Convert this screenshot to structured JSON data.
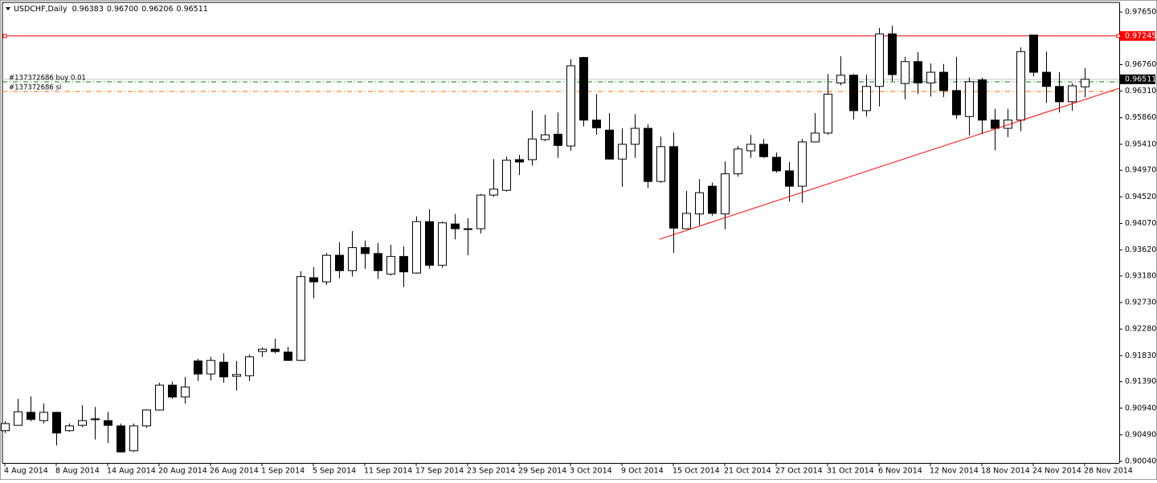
{
  "chart_data": {
    "type": "candlestick",
    "symbol": "USDCHF,Daily",
    "header_ohlc": [
      "0.96383",
      "0.96700",
      "0.96206",
      "0.96511"
    ],
    "categories": [
      "4 Aug 2014",
      null,
      null,
      null,
      "8 Aug 2014",
      null,
      null,
      null,
      "14 Aug 2014",
      null,
      null,
      null,
      "20 Aug 2014",
      null,
      null,
      null,
      "26 Aug 2014",
      null,
      null,
      null,
      "1 Sep 2014",
      null,
      null,
      null,
      "5 Sep 2014",
      null,
      null,
      null,
      "11 Sep 2014",
      null,
      null,
      null,
      "17 Sep 2014",
      null,
      null,
      null,
      "23 Sep 2014",
      null,
      null,
      null,
      "29 Sep 2014",
      null,
      null,
      null,
      "3 Oct 2014",
      null,
      null,
      null,
      "9 Oct 2014",
      null,
      null,
      null,
      "15 Oct 2014",
      null,
      null,
      null,
      "21 Oct 2014",
      null,
      null,
      null,
      "27 Oct 2014",
      null,
      null,
      null,
      "31 Oct 2014",
      null,
      null,
      null,
      "6 Nov 2014",
      null,
      null,
      null,
      "12 Nov 2014",
      null,
      null,
      null,
      "18 Nov 2014",
      null,
      null,
      null,
      "24 Nov 2014",
      null,
      null,
      null,
      "28 Nov 2014"
    ],
    "open": [
      0.9056,
      0.9065,
      0.9087,
      0.9073,
      0.9087,
      0.9056,
      0.9065,
      0.9075,
      0.9073,
      0.9064,
      0.9022,
      0.9064,
      0.9091,
      0.9133,
      0.9113,
      0.9174,
      0.9152,
      0.9172,
      0.9148,
      0.9149,
      0.919,
      0.9194,
      0.9189,
      0.9175,
      0.9315,
      0.9308,
      0.9353,
      0.9327,
      0.9366,
      0.9356,
      0.9321,
      0.9351,
      0.9323,
      0.941,
      0.9336,
      0.9406,
      0.9398,
      0.9398,
      0.9455,
      0.9463,
      0.9515,
      0.9515,
      0.9549,
      0.9558,
      0.9538,
      0.9688,
      0.9582,
      0.9565,
      0.9516,
      0.9541,
      0.9568,
      0.9478,
      0.9537,
      0.9398,
      0.9423,
      0.947,
      0.9423,
      0.9491,
      0.953,
      0.9541,
      0.9519,
      0.9496,
      0.947,
      0.9545,
      0.956,
      0.9645,
      0.9658,
      0.9598,
      0.9639,
      0.9728,
      0.9644,
      0.9681,
      0.9645,
      0.9663,
      0.9632,
      0.9588,
      0.965,
      0.9582,
      0.9568,
      0.9582,
      0.9726,
      0.9663,
      0.9639,
      0.9613,
      0.96383
    ],
    "high": [
      0.9072,
      0.911,
      0.9114,
      0.9102,
      0.9088,
      0.9068,
      0.9099,
      0.9096,
      0.9088,
      0.9068,
      0.9068,
      0.9092,
      0.9137,
      0.9139,
      0.9147,
      0.9178,
      0.9181,
      0.9187,
      0.9174,
      0.9185,
      0.9197,
      0.9212,
      0.9198,
      0.9326,
      0.9333,
      0.9357,
      0.9375,
      0.9394,
      0.9378,
      0.9374,
      0.9371,
      0.9368,
      0.9419,
      0.9431,
      0.941,
      0.9423,
      0.9416,
      0.9457,
      0.9516,
      0.952,
      0.9523,
      0.9598,
      0.9591,
      0.9595,
      0.9685,
      0.9689,
      0.9626,
      0.9594,
      0.9568,
      0.9592,
      0.9575,
      0.9554,
      0.9561,
      0.9462,
      0.9482,
      0.9476,
      0.9512,
      0.9538,
      0.9557,
      0.955,
      0.9527,
      0.9511,
      0.955,
      0.9594,
      0.966,
      0.969,
      0.966,
      0.9659,
      0.9738,
      0.9742,
      0.9689,
      0.9697,
      0.9678,
      0.9677,
      0.9689,
      0.9654,
      0.9654,
      0.9601,
      0.9601,
      0.9705,
      0.9726,
      0.9698,
      0.9663,
      0.9644,
      0.967
    ],
    "low": [
      0.9052,
      0.9065,
      0.9072,
      0.9068,
      0.9031,
      0.9054,
      0.9062,
      0.9041,
      0.9035,
      0.9019,
      0.902,
      0.9061,
      0.909,
      0.911,
      0.9102,
      0.914,
      0.9141,
      0.9137,
      0.9124,
      0.914,
      0.9181,
      0.9187,
      0.9174,
      0.9174,
      0.928,
      0.9303,
      0.9314,
      0.9317,
      0.933,
      0.9313,
      0.9319,
      0.9299,
      0.9322,
      0.933,
      0.9332,
      0.938,
      0.9353,
      0.939,
      0.9452,
      0.9461,
      0.9489,
      0.9505,
      0.9546,
      0.9518,
      0.953,
      0.9571,
      0.9557,
      0.9515,
      0.9469,
      0.9518,
      0.9467,
      0.9476,
      0.9357,
      0.9397,
      0.9404,
      0.942,
      0.9397,
      0.9486,
      0.9518,
      0.9518,
      0.9493,
      0.9444,
      0.9442,
      0.9544,
      0.9557,
      0.9641,
      0.9583,
      0.9588,
      0.9605,
      0.9648,
      0.9617,
      0.9626,
      0.9622,
      0.9621,
      0.9584,
      0.9556,
      0.9558,
      0.9531,
      0.9553,
      0.9563,
      0.9656,
      0.9611,
      0.9595,
      0.9598,
      0.96206
    ],
    "close": [
      0.9068,
      0.9088,
      0.9075,
      0.9087,
      0.9052,
      0.9064,
      0.9073,
      0.9076,
      0.9065,
      0.902,
      0.9064,
      0.9091,
      0.9133,
      0.9113,
      0.913,
      0.9152,
      0.9175,
      0.9147,
      0.9151,
      0.9181,
      0.9194,
      0.919,
      0.9175,
      0.9317,
      0.9308,
      0.9353,
      0.9327,
      0.9366,
      0.9356,
      0.9327,
      0.9351,
      0.9325,
      0.941,
      0.9336,
      0.9408,
      0.9398,
      0.9397,
      0.9455,
      0.9465,
      0.9514,
      0.9511,
      0.955,
      0.9557,
      0.9539,
      0.9674,
      0.9582,
      0.9569,
      0.9516,
      0.9541,
      0.9568,
      0.9478,
      0.9537,
      0.9399,
      0.9424,
      0.9459,
      0.9424,
      0.9491,
      0.9533,
      0.9541,
      0.952,
      0.9496,
      0.947,
      0.9545,
      0.956,
      0.9626,
      0.9658,
      0.9598,
      0.9639,
      0.9728,
      0.9659,
      0.9681,
      0.9645,
      0.9663,
      0.9632,
      0.9591,
      0.9647,
      0.9582,
      0.9568,
      0.9582,
      0.9698,
      0.9663,
      0.9639,
      0.9613,
      0.964,
      0.96511
    ],
    "up_color": "#ffffff",
    "down_color": "#000000",
    "ylim": [
      0.90013,
      0.97813
    ],
    "yticks": [
      {
        "value": 0.9765,
        "label": "0.97650"
      },
      {
        "value": 0.9676,
        "label": "0.96760"
      },
      {
        "value": 0.9631,
        "label": "0.96310"
      },
      {
        "value": 0.9586,
        "label": "0.95860"
      },
      {
        "value": 0.9541,
        "label": "0.95410"
      },
      {
        "value": 0.9497,
        "label": "0.94970"
      },
      {
        "value": 0.9452,
        "label": "0.94520"
      },
      {
        "value": 0.9407,
        "label": "0.94070"
      },
      {
        "value": 0.9362,
        "label": "0.93620"
      },
      {
        "value": 0.9318,
        "label": "0.93180"
      },
      {
        "value": 0.9273,
        "label": "0.92730"
      },
      {
        "value": 0.9228,
        "label": "0.92280"
      },
      {
        "value": 0.9183,
        "label": "0.91830"
      },
      {
        "value": 0.9139,
        "label": "0.91390"
      },
      {
        "value": 0.9094,
        "label": "0.90940"
      },
      {
        "value": 0.9049,
        "label": "0.90490"
      },
      {
        "value": 0.9004,
        "label": "0.90040"
      }
    ],
    "level": 0.97245,
    "level_color": "#ff0000",
    "bid": 0.96511,
    "orders": [
      {
        "label": "#137372686 buy 0.01",
        "value": 0.96468,
        "color": "#008000"
      },
      {
        "label": "#137372686 sl",
        "value": 0.96305,
        "color": "#ff6a00"
      }
    ],
    "trendline": {
      "x": [
        50.9,
        86.7
      ],
      "y": [
        0.938,
        0.9636
      ],
      "color": "#ff0000"
    }
  }
}
